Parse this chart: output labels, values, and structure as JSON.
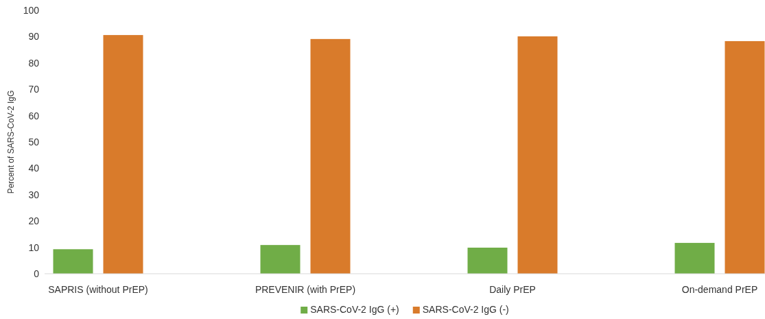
{
  "chart_data": {
    "type": "bar",
    "ylabel": "Percent of SARS-CoV-2 IgG",
    "categories": [
      "SAPRIS (without PrEP)",
      "PREVENIR (with PrEP)",
      "Daily PrEP",
      "On-demand PrEP"
    ],
    "series": [
      {
        "name": "SARS-CoV-2 IgG (+)",
        "color": "#70ad47",
        "values": [
          9.3,
          10.9,
          9.9,
          11.7
        ]
      },
      {
        "name": "SARS-CoV-2 IgG (-)",
        "color": "#d97b2b",
        "values": [
          90.6,
          89.1,
          90.1,
          88.3
        ]
      }
    ],
    "ylim": [
      0,
      100
    ],
    "yticks": [
      0,
      10,
      20,
      30,
      40,
      50,
      60,
      70,
      80,
      90,
      100
    ],
    "grid": false,
    "legend": "bottom"
  }
}
